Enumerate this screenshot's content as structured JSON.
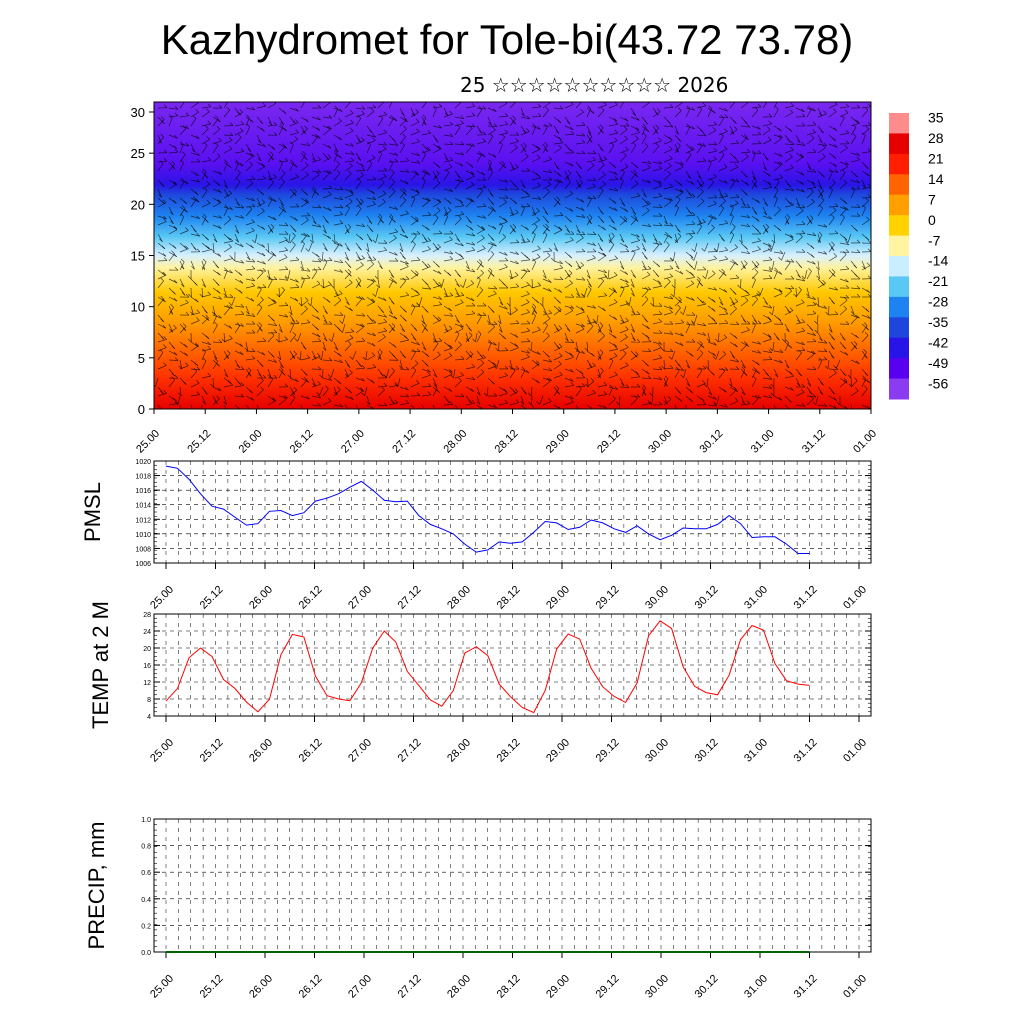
{
  "title": "Kazhydromet for Tole-bi(43.72 73.78)",
  "subtitle": "25 ☆☆☆☆☆☆☆☆☆☆ 2026",
  "time_labels": [
    "25.00",
    "25.12",
    "26.00",
    "26.12",
    "27.00",
    "27.12",
    "28.00",
    "28.12",
    "29.00",
    "29.12",
    "30.00",
    "30.12",
    "31.00",
    "31.12",
    "01.00"
  ],
  "colors": {
    "pmsl_line": "#0000ff",
    "temp_line": "#ff0000",
    "precip_line": "#006400"
  },
  "chart_data": [
    {
      "type": "heatmap",
      "title": "",
      "xlabel": "",
      "ylabel": "",
      "ylim": [
        0,
        30
      ],
      "y_ticks": [
        0,
        5,
        10,
        15,
        20,
        25,
        30
      ],
      "colorbar": {
        "labels": [
          "35",
          "28",
          "21",
          "14",
          "7",
          "0",
          "-7",
          "-14",
          "-21",
          "-28",
          "-35",
          "-42",
          "-49",
          "-56"
        ],
        "colors": [
          "#ff8c8c",
          "#e60000",
          "#ff1e00",
          "#ff6400",
          "#ffa000",
          "#ffd200",
          "#fff5a0",
          "#c8eeff",
          "#5ac8f5",
          "#1e82f0",
          "#1e46dc",
          "#2814e6",
          "#5a00f0",
          "#8c3cf0"
        ]
      },
      "wind_barbs": true
    },
    {
      "type": "line",
      "ylabel": "PMSL",
      "ylim": [
        1006,
        1020
      ],
      "y_ticks": [
        1006,
        1008,
        1010,
        1012,
        1014,
        1016,
        1018,
        1020
      ],
      "series": [
        {
          "values": [
            1019.3,
            1019.0,
            1017.5,
            1015.5,
            1013.8,
            1013.4,
            1012.3,
            1011.2,
            1011.4,
            1013.1,
            1013.2,
            1012.5,
            1012.9,
            1014.5,
            1014.9,
            1015.5,
            1016.4,
            1017.2,
            1016.0,
            1014.6,
            1014.4,
            1014.5,
            1012.5,
            1011.3,
            1010.7,
            1010.0,
            1008.6,
            1007.5,
            1007.8,
            1008.9,
            1008.7,
            1008.9,
            1010.2,
            1011.7,
            1011.5,
            1010.6,
            1010.9,
            1011.9,
            1011.5,
            1010.7,
            1010.2,
            1011.1,
            1010.0,
            1009.2,
            1009.8,
            1010.8,
            1010.7,
            1010.7,
            1011.3,
            1012.5,
            1011.4,
            1009.5,
            1009.6,
            1009.6,
            1008.6,
            1007.3,
            1007.3
          ]
        }
      ]
    },
    {
      "type": "line",
      "ylabel": "TEMP at 2 M",
      "ylim": [
        4,
        28
      ],
      "y_ticks": [
        4,
        8,
        12,
        16,
        20,
        24,
        28
      ],
      "series": [
        {
          "values": [
            7.5,
            10.5,
            17.7,
            20.0,
            18.0,
            12.6,
            10.5,
            7.3,
            5.0,
            7.9,
            18.4,
            23.2,
            22.6,
            13.4,
            8.8,
            8.0,
            7.6,
            11.8,
            20.0,
            24.0,
            21.4,
            14.5,
            11.2,
            7.8,
            6.3,
            10.0,
            18.8,
            20.3,
            18.2,
            11.5,
            8.5,
            6.0,
            4.8,
            10.0,
            19.8,
            23.3,
            22.1,
            15.2,
            10.9,
            8.6,
            7.2,
            11.8,
            22.9,
            26.4,
            24.6,
            15.6,
            11.0,
            9.5,
            9.0,
            13.6,
            22.0,
            25.3,
            24.2,
            16.3,
            12.3,
            11.5,
            11.2
          ]
        }
      ]
    },
    {
      "type": "line",
      "ylabel": "PRECIP, mm",
      "ylim": [
        0,
        1.0
      ],
      "y_ticks": [
        "0.0",
        "0.2",
        "0.4",
        "0.6",
        "0.8",
        "1.0"
      ],
      "series": [
        {
          "values": [
            0,
            0,
            0,
            0,
            0,
            0,
            0,
            0,
            0,
            0,
            0,
            0,
            0,
            0,
            0,
            0,
            0,
            0,
            0,
            0,
            0,
            0,
            0,
            0,
            0,
            0,
            0,
            0,
            0,
            0,
            0,
            0,
            0,
            0,
            0,
            0,
            0,
            0,
            0,
            0,
            0,
            0,
            0,
            0,
            0,
            0,
            0,
            0,
            0,
            0,
            0,
            0,
            0,
            0,
            0,
            0,
            0
          ]
        }
      ]
    }
  ]
}
